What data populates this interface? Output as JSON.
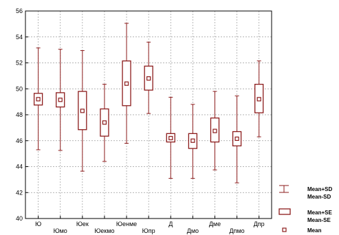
{
  "chart_data": {
    "type": "box",
    "ylim": [
      40,
      56
    ],
    "yticks": [
      40,
      42,
      44,
      46,
      48,
      50,
      52,
      54,
      56
    ],
    "grid": true,
    "legend_position": "bottom-right",
    "categories": [
      "Ю",
      "Юмо",
      "Юек",
      "Юекмо",
      "Юенме",
      "Юпр",
      "Д",
      "Дмо",
      "Дме",
      "Дпмо",
      "Дпр"
    ],
    "mean": [
      49.2,
      49.15,
      48.3,
      47.4,
      50.4,
      50.8,
      46.2,
      46.0,
      46.75,
      46.15,
      49.2
    ],
    "se_low": [
      48.75,
      48.6,
      46.85,
      46.35,
      48.7,
      49.9,
      45.9,
      45.4,
      45.9,
      45.6,
      48.15
    ],
    "se_high": [
      49.65,
      49.7,
      49.8,
      48.45,
      52.15,
      51.75,
      46.55,
      46.55,
      47.75,
      46.7,
      50.35
    ],
    "sd_low": [
      45.3,
      45.25,
      43.65,
      44.4,
      45.8,
      48.1,
      43.1,
      43.1,
      43.75,
      42.75,
      46.3
    ],
    "sd_high": [
      53.15,
      53.05,
      52.95,
      50.35,
      55.05,
      53.6,
      49.35,
      48.8,
      49.8,
      49.45,
      52.15
    ],
    "legend": [
      {
        "type": "whisker",
        "lines": [
          "Mean+SD",
          "Mean-SD"
        ]
      },
      {
        "type": "box",
        "lines": [
          "Mean+SE",
          "Mean-SE"
        ]
      },
      {
        "type": "point",
        "lines": [
          "Mean"
        ]
      }
    ]
  }
}
